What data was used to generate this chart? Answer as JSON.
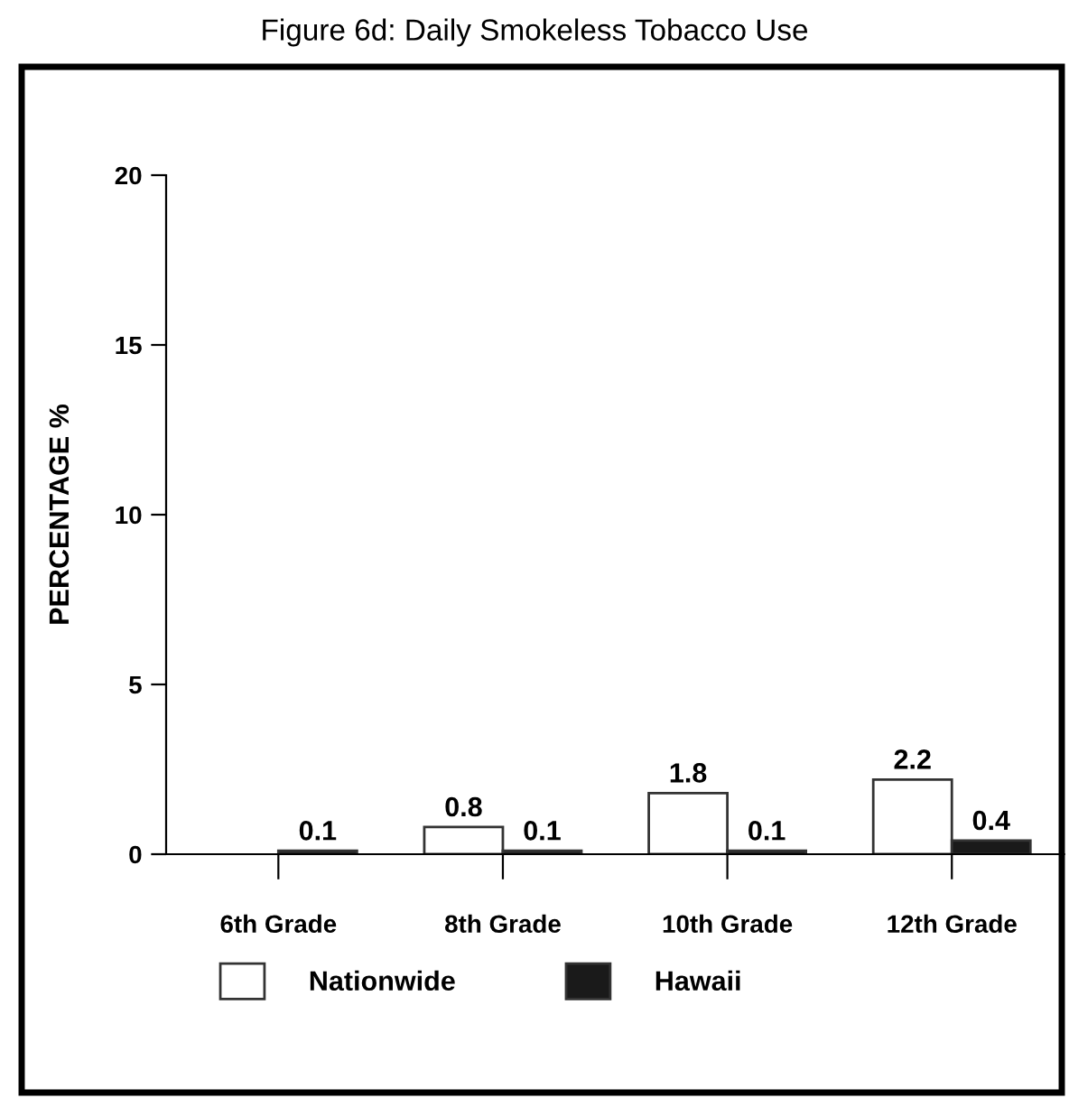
{
  "chart_data": {
    "type": "bar",
    "title": "Figure 6d: Daily Smokeless Tobacco Use",
    "ylabel": "PERCENTAGE %",
    "categories": [
      "6th Grade",
      "8th Grade",
      "10th Grade",
      "12th Grade"
    ],
    "series": [
      {
        "name": "Nationwide",
        "color": "#ffffff",
        "values": [
          null,
          0.8,
          1.8,
          2.2
        ]
      },
      {
        "name": "Hawaii",
        "color": "#1a1a1a",
        "values": [
          0.1,
          0.1,
          0.1,
          0.4
        ]
      }
    ],
    "ylim": [
      0,
      20
    ],
    "yticks": [
      0,
      5,
      10,
      15,
      20
    ],
    "data_labels": true,
    "legend": "bottom",
    "grid": false
  }
}
